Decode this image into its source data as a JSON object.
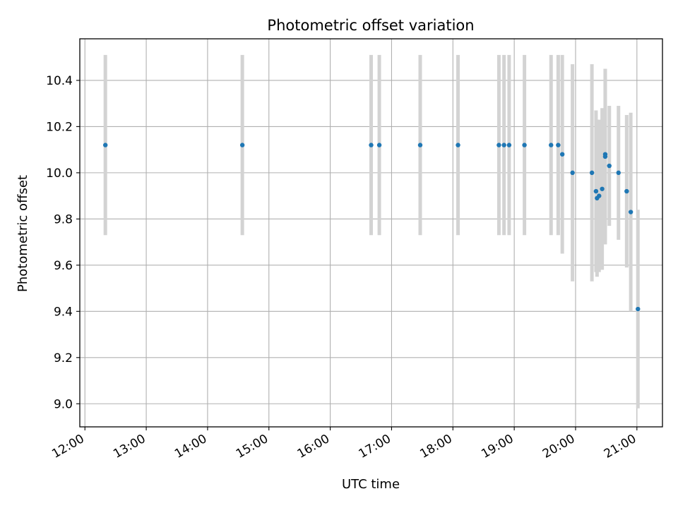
{
  "chart_data": {
    "type": "scatter",
    "title": "Photometric offset variation",
    "xlabel": "UTC time",
    "ylabel": "Photometric offset",
    "x_unit": "UTC time (HH:MM)",
    "xlim": [
      "11:55",
      "21:25"
    ],
    "ylim": [
      8.9,
      10.58
    ],
    "grid": true,
    "x_ticks": [
      "12:00",
      "13:00",
      "14:00",
      "15:00",
      "16:00",
      "17:00",
      "18:00",
      "19:00",
      "20:00",
      "21:00"
    ],
    "y_ticks": [
      "9.0",
      "9.2",
      "9.4",
      "9.6",
      "9.8",
      "10.0",
      "10.2",
      "10.4"
    ],
    "colors": {
      "points": "#1f77b4",
      "errorbars": "#d3d3d3",
      "grid": "#b0b0b0"
    },
    "series": [
      {
        "points": [
          {
            "x": "12:20",
            "y": 10.12,
            "yerr": 0.39
          },
          {
            "x": "14:34",
            "y": 10.12,
            "yerr": 0.39
          },
          {
            "x": "16:40",
            "y": 10.12,
            "yerr": 0.39
          },
          {
            "x": "16:48",
            "y": 10.12,
            "yerr": 0.39
          },
          {
            "x": "17:28",
            "y": 10.12,
            "yerr": 0.39
          },
          {
            "x": "18:05",
            "y": 10.12,
            "yerr": 0.39
          },
          {
            "x": "18:45",
            "y": 10.12,
            "yerr": 0.39
          },
          {
            "x": "18:50",
            "y": 10.12,
            "yerr": 0.39
          },
          {
            "x": "18:55",
            "y": 10.12,
            "yerr": 0.39
          },
          {
            "x": "19:10",
            "y": 10.12,
            "yerr": 0.39
          },
          {
            "x": "19:36",
            "y": 10.12,
            "yerr": 0.39
          },
          {
            "x": "19:43",
            "y": 10.12,
            "yerr": 0.39
          },
          {
            "x": "19:47",
            "y": 10.08,
            "yerr": 0.43
          },
          {
            "x": "19:57",
            "y": 10.0,
            "yerr": 0.47
          },
          {
            "x": "20:16",
            "y": 10.0,
            "yerr": 0.47
          },
          {
            "x": "20:20",
            "y": 9.92,
            "yerr": 0.35
          },
          {
            "x": "20:21",
            "y": 9.89,
            "yerr": 0.34
          },
          {
            "x": "20:23",
            "y": 9.9,
            "yerr": 0.33
          },
          {
            "x": "20:26",
            "y": 9.93,
            "yerr": 0.35
          },
          {
            "x": "20:29",
            "y": 10.08,
            "yerr": 0.37
          },
          {
            "x": "20:29",
            "y": 10.07,
            "yerr": 0.38
          },
          {
            "x": "20:33",
            "y": 10.03,
            "yerr": 0.26
          },
          {
            "x": "20:42",
            "y": 10.0,
            "yerr": 0.29
          },
          {
            "x": "20:50",
            "y": 9.92,
            "yerr": 0.33
          },
          {
            "x": "20:54",
            "y": 9.83,
            "yerr": 0.43
          },
          {
            "x": "21:01",
            "y": 9.41,
            "yerr": 0.43
          }
        ]
      }
    ]
  }
}
